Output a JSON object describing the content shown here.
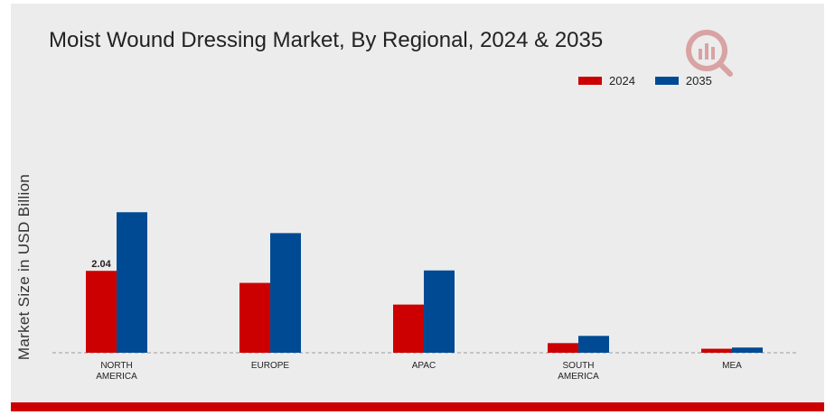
{
  "chart_data": {
    "type": "bar",
    "title": "Moist Wound Dressing Market, By Regional, 2024 & 2035",
    "ylabel": "Market Size in USD Billion",
    "xlabel": "",
    "categories": [
      [
        "NORTH",
        "AMERICA"
      ],
      [
        "EUROPE"
      ],
      [
        "APAC"
      ],
      [
        "SOUTH",
        "AMERICA"
      ],
      [
        "MEA"
      ]
    ],
    "series": [
      {
        "name": "2024",
        "color": "#cc0000",
        "values": [
          2.04,
          1.74,
          1.2,
          0.24,
          0.1
        ]
      },
      {
        "name": "2035",
        "color": "#004a94",
        "values": [
          3.5,
          2.98,
          2.05,
          0.42,
          0.13
        ]
      }
    ],
    "data_labels": [
      {
        "series": 0,
        "category": 0,
        "text": "2.04"
      }
    ],
    "ylim": [
      0,
      4
    ],
    "grid": false,
    "baseline_style": "dashed",
    "legend_position": "top-right"
  },
  "logo": {
    "icon": "market-research-logo-icon",
    "color": "#cc0000"
  }
}
